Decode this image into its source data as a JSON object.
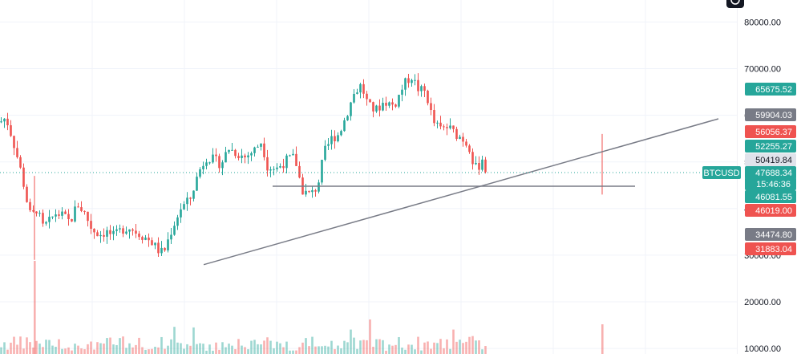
{
  "chart_data": {
    "type": "candlestick",
    "symbol": "BTCUSD",
    "countdown": "15:46:36",
    "y_axis": {
      "ticks": [
        10000,
        20000,
        30000,
        40000,
        50000,
        60000,
        70000,
        80000
      ],
      "tick_labels": [
        "10000.00",
        "20000.00",
        "30000.00",
        "40000.00",
        "50000.00",
        "60000.00",
        "70000.00",
        "80000.00"
      ],
      "range": [
        10000,
        84000
      ]
    },
    "grid": true,
    "price_badges": [
      {
        "label": "65675.52",
        "value": 65675.52,
        "color": "#26a69a"
      },
      {
        "label": "59904.03",
        "value": 59904.03,
        "color": "#787b86"
      },
      {
        "label": "56056.37",
        "value": 56056.37,
        "color": "#ef5350"
      },
      {
        "label": "52255.27",
        "value": 52255.27,
        "color": "#26a69a"
      },
      {
        "label": "50419.84",
        "value": 50419.84,
        "color": "#e0e3eb"
      },
      {
        "label": "47688.34",
        "value": 47688.34,
        "color": "#26a69a"
      },
      {
        "label": "46081.55",
        "value": 46081.55,
        "color": "#26a69a"
      },
      {
        "label": "46019.00",
        "value": 46019.0,
        "color": "#ef5350"
      },
      {
        "label": "34474.80",
        "value": 34474.8,
        "color": "#787b86"
      },
      {
        "label": "31883.04",
        "value": 31883.04,
        "color": "#ef5350"
      }
    ],
    "last_price": 47688.34,
    "trendline": {
      "start": [
        0.2155,
        29000
      ],
      "end": [
        0.75,
        59000
      ]
    },
    "support_line": {
      "start": [
        0.28,
        46000
      ],
      "end": [
        0.665,
        46000
      ]
    },
    "path_points": [
      [
        0.0,
        58500
      ],
      [
        0.008,
        59500
      ],
      [
        0.015,
        56000
      ],
      [
        0.022,
        52000
      ],
      [
        0.03,
        47000
      ],
      [
        0.036,
        42000
      ],
      [
        0.042,
        38000
      ],
      [
        0.05,
        40000
      ],
      [
        0.058,
        36000
      ],
      [
        0.066,
        37000
      ],
      [
        0.075,
        39000
      ],
      [
        0.085,
        38500
      ],
      [
        0.095,
        37000
      ],
      [
        0.105,
        41000
      ],
      [
        0.115,
        39000
      ],
      [
        0.125,
        35500
      ],
      [
        0.135,
        34500
      ],
      [
        0.145,
        35000
      ],
      [
        0.155,
        34000
      ],
      [
        0.165,
        35500
      ],
      [
        0.175,
        36000
      ],
      [
        0.185,
        35000
      ],
      [
        0.195,
        34000
      ],
      [
        0.205,
        33000
      ],
      [
        0.215,
        31000
      ],
      [
        0.222,
        30500
      ],
      [
        0.232,
        35000
      ],
      [
        0.245,
        40000
      ],
      [
        0.258,
        42000
      ],
      [
        0.27,
        48000
      ],
      [
        0.28,
        51000
      ],
      [
        0.29,
        50500
      ],
      [
        0.3,
        49500
      ],
      [
        0.31,
        53000
      ],
      [
        0.32,
        52000
      ],
      [
        0.332,
        51000
      ],
      [
        0.345,
        52500
      ],
      [
        0.355,
        54500
      ],
      [
        0.363,
        49000
      ],
      [
        0.375,
        48500
      ],
      [
        0.39,
        50500
      ],
      [
        0.4,
        51000
      ],
      [
        0.41,
        44000
      ],
      [
        0.418,
        43000
      ],
      [
        0.426,
        43500
      ],
      [
        0.432,
        45500
      ],
      [
        0.44,
        52000
      ],
      [
        0.45,
        55000
      ],
      [
        0.46,
        56000
      ],
      [
        0.47,
        60000
      ],
      [
        0.48,
        64500
      ],
      [
        0.49,
        66500
      ],
      [
        0.5,
        62000
      ],
      [
        0.51,
        61000
      ],
      [
        0.522,
        63000
      ],
      [
        0.535,
        62000
      ],
      [
        0.548,
        66500
      ],
      [
        0.558,
        68500
      ],
      [
        0.568,
        65500
      ],
      [
        0.578,
        65000
      ],
      [
        0.588,
        58500
      ],
      [
        0.598,
        57000
      ],
      [
        0.608,
        57500
      ],
      [
        0.618,
        56000
      ],
      [
        0.628,
        55000
      ],
      [
        0.638,
        53000
      ],
      [
        0.643,
        49000
      ],
      [
        0.648,
        48500
      ],
      [
        0.655,
        51000
      ],
      [
        0.66,
        47700
      ]
    ]
  }
}
